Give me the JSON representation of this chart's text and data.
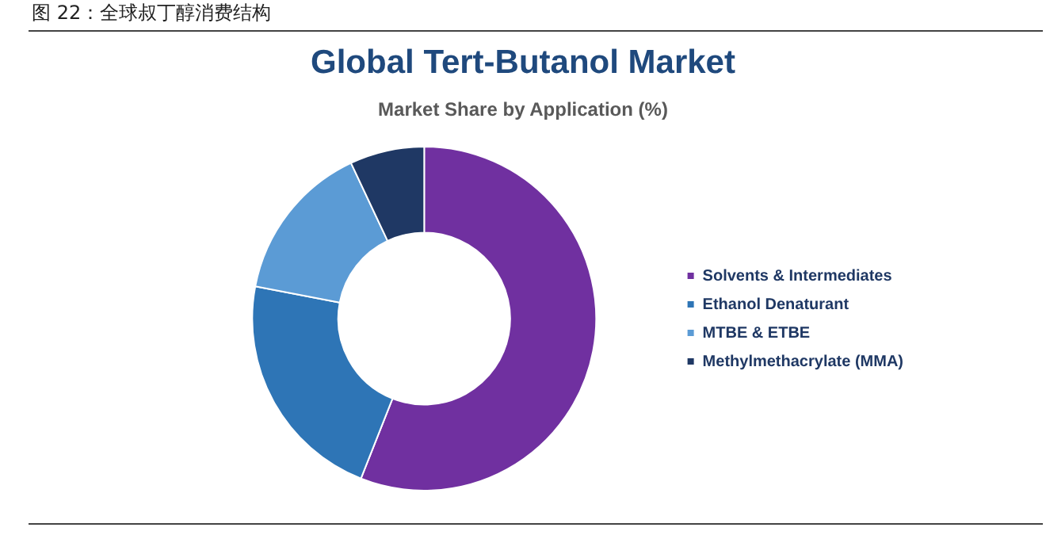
{
  "chart_data": {
    "type": "donut",
    "title": "Global Tert-Butanol Market",
    "subtitle": "Market Share by Application (%)",
    "annotations": [
      "图 22：全球叔丁醇消费结构"
    ],
    "categories": [
      "Solvents & Intermediates",
      "Ethanol Denaturant",
      "MTBE & ETBE",
      "Methylmethacrylate (MMA)"
    ],
    "values": [
      56,
      22,
      15,
      7
    ],
    "colors": [
      "#7030a0",
      "#2e75b6",
      "#5b9bd5",
      "#1f3864"
    ],
    "legend": "right"
  }
}
